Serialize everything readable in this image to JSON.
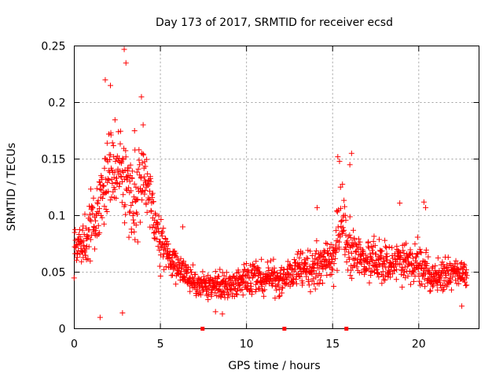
{
  "chart_data": {
    "type": "scatter",
    "title": "Day 173 of 2017, SRMTID for receiver ecsd",
    "xlabel": "GPS time / hours",
    "ylabel": "SRMTID / TECUs",
    "xlim": [
      0,
      23.5
    ],
    "ylim": [
      0,
      0.25
    ],
    "x_ticks": [
      {
        "value": 0,
        "label": "0"
      },
      {
        "value": 5,
        "label": "5"
      },
      {
        "value": 10,
        "label": "10"
      },
      {
        "value": 15,
        "label": "15"
      },
      {
        "value": 20,
        "label": "20"
      }
    ],
    "y_ticks": [
      {
        "value": 0,
        "label": "0"
      },
      {
        "value": 0.05,
        "label": "0.05"
      },
      {
        "value": 0.1,
        "label": "0.1"
      },
      {
        "value": 0.15,
        "label": "0.15"
      },
      {
        "value": 0.2,
        "label": "0.2"
      },
      {
        "value": 0.25,
        "label": "0.25"
      }
    ],
    "grid": true,
    "marker": "+",
    "series_color": "#ff0000",
    "baseline_marks": [
      7.45,
      12.2,
      15.8
    ],
    "series": [
      {
        "name": "SRMTID",
        "envelope": [
          {
            "x": 0.0,
            "y": 0.075,
            "spread": 0.015
          },
          {
            "x": 0.5,
            "y": 0.07,
            "spread": 0.02
          },
          {
            "x": 1.0,
            "y": 0.09,
            "spread": 0.03
          },
          {
            "x": 1.5,
            "y": 0.11,
            "spread": 0.035
          },
          {
            "x": 2.0,
            "y": 0.14,
            "spread": 0.04
          },
          {
            "x": 2.5,
            "y": 0.14,
            "spread": 0.04
          },
          {
            "x": 3.0,
            "y": 0.13,
            "spread": 0.045
          },
          {
            "x": 3.5,
            "y": 0.11,
            "spread": 0.04
          },
          {
            "x": 4.0,
            "y": 0.14,
            "spread": 0.04
          },
          {
            "x": 4.5,
            "y": 0.11,
            "spread": 0.03
          },
          {
            "x": 5.0,
            "y": 0.075,
            "spread": 0.025
          },
          {
            "x": 5.5,
            "y": 0.06,
            "spread": 0.015
          },
          {
            "x": 6.0,
            "y": 0.055,
            "spread": 0.015
          },
          {
            "x": 7.0,
            "y": 0.04,
            "spread": 0.012
          },
          {
            "x": 8.0,
            "y": 0.038,
            "spread": 0.012
          },
          {
            "x": 9.0,
            "y": 0.038,
            "spread": 0.012
          },
          {
            "x": 10.0,
            "y": 0.045,
            "spread": 0.015
          },
          {
            "x": 11.0,
            "y": 0.045,
            "spread": 0.015
          },
          {
            "x": 12.0,
            "y": 0.042,
            "spread": 0.015
          },
          {
            "x": 13.0,
            "y": 0.055,
            "spread": 0.015
          },
          {
            "x": 14.0,
            "y": 0.055,
            "spread": 0.018
          },
          {
            "x": 15.0,
            "y": 0.06,
            "spread": 0.02
          },
          {
            "x": 15.5,
            "y": 0.1,
            "spread": 0.03
          },
          {
            "x": 16.0,
            "y": 0.075,
            "spread": 0.03
          },
          {
            "x": 16.5,
            "y": 0.065,
            "spread": 0.02
          },
          {
            "x": 17.0,
            "y": 0.06,
            "spread": 0.018
          },
          {
            "x": 18.0,
            "y": 0.06,
            "spread": 0.018
          },
          {
            "x": 19.0,
            "y": 0.058,
            "spread": 0.018
          },
          {
            "x": 20.0,
            "y": 0.055,
            "spread": 0.02
          },
          {
            "x": 21.0,
            "y": 0.045,
            "spread": 0.015
          },
          {
            "x": 22.0,
            "y": 0.05,
            "spread": 0.015
          },
          {
            "x": 22.8,
            "y": 0.045,
            "spread": 0.015
          }
        ],
        "peaks": [
          {
            "x": 1.8,
            "y": 0.22
          },
          {
            "x": 2.1,
            "y": 0.215
          },
          {
            "x": 2.9,
            "y": 0.247
          },
          {
            "x": 3.0,
            "y": 0.235
          },
          {
            "x": 3.9,
            "y": 0.205
          },
          {
            "x": 3.5,
            "y": 0.175
          },
          {
            "x": 15.3,
            "y": 0.152
          },
          {
            "x": 15.4,
            "y": 0.148
          },
          {
            "x": 16.1,
            "y": 0.155
          },
          {
            "x": 16.0,
            "y": 0.145
          },
          {
            "x": 14.1,
            "y": 0.107
          },
          {
            "x": 18.9,
            "y": 0.111
          },
          {
            "x": 20.3,
            "y": 0.112
          },
          {
            "x": 20.4,
            "y": 0.107
          },
          {
            "x": 6.3,
            "y": 0.09
          }
        ],
        "lows": [
          {
            "x": 1.5,
            "y": 0.01
          },
          {
            "x": 2.8,
            "y": 0.014
          },
          {
            "x": 8.2,
            "y": 0.015
          },
          {
            "x": 8.6,
            "y": 0.013
          },
          {
            "x": 22.5,
            "y": 0.02
          }
        ]
      }
    ]
  }
}
